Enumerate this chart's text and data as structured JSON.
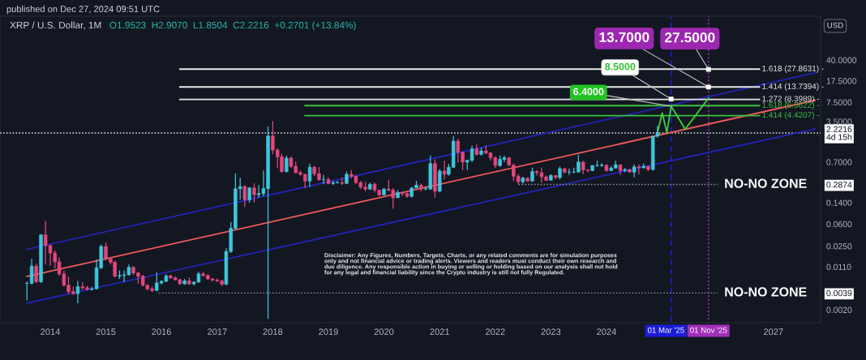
{
  "chart_data": {
    "type": "candlestick",
    "title": "XRP / U.S. Dollar, 1M",
    "subtitle": "O1.9523  H2.9070  L1.8504  C2.2216  +0.2701 (+13.84%)",
    "ylabel": "USD",
    "log": true,
    "x": [
      "2013-08",
      "2013-09",
      "2013-10",
      "2013-11",
      "2013-12",
      "2014-01",
      "2014-02",
      "2014-03",
      "2014-04",
      "2014-05",
      "2014-06",
      "2014-07",
      "2014-08",
      "2014-09",
      "2014-10",
      "2014-11",
      "2014-12",
      "2015-01",
      "2015-02",
      "2015-03",
      "2015-04",
      "2015-05",
      "2015-06",
      "2015-07",
      "2015-08",
      "2015-09",
      "2015-10",
      "2015-11",
      "2015-12",
      "2016-01",
      "2016-02",
      "2016-03",
      "2016-04",
      "2016-05",
      "2016-06",
      "2016-07",
      "2016-08",
      "2016-09",
      "2016-10",
      "2016-11",
      "2016-12",
      "2017-01",
      "2017-02",
      "2017-03",
      "2017-04",
      "2017-05",
      "2017-06",
      "2017-07",
      "2017-08",
      "2017-09",
      "2017-10",
      "2017-11",
      "2017-12",
      "2018-01",
      "2018-02",
      "2018-03",
      "2018-04",
      "2018-05",
      "2018-06",
      "2018-07",
      "2018-08",
      "2018-09",
      "2018-10",
      "2018-11",
      "2018-12",
      "2019-01",
      "2019-02",
      "2019-03",
      "2019-04",
      "2019-05",
      "2019-06",
      "2019-07",
      "2019-08",
      "2019-09",
      "2019-10",
      "2019-11",
      "2019-12",
      "2020-01",
      "2020-02",
      "2020-03",
      "2020-04",
      "2020-05",
      "2020-06",
      "2020-07",
      "2020-08",
      "2020-09",
      "2020-10",
      "2020-11",
      "2020-12",
      "2021-01",
      "2021-02",
      "2021-03",
      "2021-04",
      "2021-05",
      "2021-06",
      "2021-07",
      "2021-08",
      "2021-09",
      "2021-10",
      "2021-11",
      "2021-12",
      "2022-01",
      "2022-02",
      "2022-03",
      "2022-04",
      "2022-05",
      "2022-06",
      "2022-07",
      "2022-08",
      "2022-09",
      "2022-10",
      "2022-11",
      "2022-12",
      "2023-01",
      "2023-02",
      "2023-03",
      "2023-04",
      "2023-05",
      "2023-06",
      "2023-07",
      "2023-08",
      "2023-09",
      "2023-10",
      "2023-11",
      "2023-12",
      "2024-01",
      "2024-02",
      "2024-03",
      "2024-04",
      "2024-05",
      "2024-06",
      "2024-07",
      "2024-08",
      "2024-09",
      "2024-10",
      "2024-11",
      "2024-12"
    ],
    "ohlc": [
      [
        0.0057,
        0.0062,
        0.0029,
        0.0057
      ],
      [
        0.0057,
        0.0151,
        0.0055,
        0.0113
      ],
      [
        0.0113,
        0.0125,
        0.0058,
        0.0061
      ],
      [
        0.0061,
        0.04,
        0.0058,
        0.039
      ],
      [
        0.039,
        0.068,
        0.012,
        0.0255
      ],
      [
        0.0255,
        0.027,
        0.0116,
        0.019
      ],
      [
        0.019,
        0.021,
        0.0103,
        0.0134
      ],
      [
        0.0134,
        0.016,
        0.0077,
        0.0083
      ],
      [
        0.0083,
        0.0095,
        0.005,
        0.0053
      ],
      [
        0.0053,
        0.0075,
        0.0037,
        0.0041
      ],
      [
        0.0041,
        0.005,
        0.0036,
        0.0038
      ],
      [
        0.0038,
        0.0063,
        0.0026,
        0.005
      ],
      [
        0.005,
        0.006,
        0.0044,
        0.0048
      ],
      [
        0.0048,
        0.0052,
        0.0043,
        0.0045
      ],
      [
        0.0045,
        0.005,
        0.0043,
        0.0046
      ],
      [
        0.0046,
        0.0147,
        0.0045,
        0.0106
      ],
      [
        0.0106,
        0.0267,
        0.01,
        0.0247
      ],
      [
        0.0247,
        0.0287,
        0.014,
        0.0151
      ],
      [
        0.0151,
        0.016,
        0.012,
        0.0132
      ],
      [
        0.0132,
        0.014,
        0.0072,
        0.0076
      ],
      [
        0.0076,
        0.0095,
        0.0068,
        0.0078
      ],
      [
        0.0078,
        0.0095,
        0.006,
        0.008
      ],
      [
        0.008,
        0.012,
        0.0078,
        0.0108
      ],
      [
        0.0108,
        0.0112,
        0.008,
        0.0086
      ],
      [
        0.0086,
        0.009,
        0.0056,
        0.0076
      ],
      [
        0.0076,
        0.008,
        0.005,
        0.0053
      ],
      [
        0.0053,
        0.0055,
        0.0043,
        0.0046
      ],
      [
        0.0046,
        0.005,
        0.004,
        0.0043
      ],
      [
        0.0043,
        0.0088,
        0.0042,
        0.0058
      ],
      [
        0.0058,
        0.0065,
        0.0055,
        0.0062
      ],
      [
        0.0062,
        0.0082,
        0.006,
        0.0077
      ],
      [
        0.0077,
        0.008,
        0.0068,
        0.0071
      ],
      [
        0.0071,
        0.0075,
        0.0064,
        0.0066
      ],
      [
        0.0066,
        0.0068,
        0.0054,
        0.0056
      ],
      [
        0.0056,
        0.0068,
        0.0054,
        0.0063
      ],
      [
        0.0063,
        0.0072,
        0.0054,
        0.0056
      ],
      [
        0.0056,
        0.0062,
        0.0053,
        0.006
      ],
      [
        0.006,
        0.009,
        0.0059,
        0.0083
      ],
      [
        0.0083,
        0.009,
        0.0074,
        0.0078
      ],
      [
        0.0078,
        0.0082,
        0.0066,
        0.0068
      ],
      [
        0.0068,
        0.007,
        0.0062,
        0.0065
      ],
      [
        0.0065,
        0.007,
        0.006,
        0.0063
      ],
      [
        0.0063,
        0.0066,
        0.0052,
        0.0055
      ],
      [
        0.0055,
        0.023,
        0.0053,
        0.0202
      ],
      [
        0.0202,
        0.065,
        0.019,
        0.0507
      ],
      [
        0.0507,
        0.45,
        0.048,
        0.243
      ],
      [
        0.243,
        0.376,
        0.157,
        0.265
      ],
      [
        0.265,
        0.28,
        0.118,
        0.157
      ],
      [
        0.157,
        0.26,
        0.14,
        0.251
      ],
      [
        0.251,
        0.3,
        0.14,
        0.192
      ],
      [
        0.192,
        0.28,
        0.17,
        0.2
      ],
      [
        0.2,
        0.5,
        0.18,
        0.245
      ],
      [
        0.245,
        2.86,
        0.0014,
        1.97
      ],
      [
        1.97,
        3.55,
        0.95,
        1.13
      ],
      [
        1.13,
        1.2,
        0.55,
        0.86
      ],
      [
        0.86,
        0.98,
        0.46,
        0.48
      ],
      [
        0.48,
        0.9,
        0.46,
        0.82
      ],
      [
        0.82,
        0.88,
        0.55,
        0.59
      ],
      [
        0.59,
        0.71,
        0.45,
        0.46
      ],
      [
        0.46,
        0.5,
        0.41,
        0.43
      ],
      [
        0.43,
        0.44,
        0.25,
        0.33
      ],
      [
        0.33,
        0.66,
        0.26,
        0.57
      ],
      [
        0.57,
        0.6,
        0.4,
        0.44
      ],
      [
        0.44,
        0.57,
        0.33,
        0.35
      ],
      [
        0.35,
        0.42,
        0.29,
        0.35
      ],
      [
        0.35,
        0.38,
        0.29,
        0.3
      ],
      [
        0.3,
        0.33,
        0.28,
        0.31
      ],
      [
        0.31,
        0.33,
        0.3,
        0.31
      ],
      [
        0.31,
        0.38,
        0.28,
        0.3
      ],
      [
        0.3,
        0.48,
        0.29,
        0.43
      ],
      [
        0.43,
        0.51,
        0.37,
        0.4
      ],
      [
        0.4,
        0.41,
        0.29,
        0.31
      ],
      [
        0.31,
        0.33,
        0.24,
        0.26
      ],
      [
        0.26,
        0.32,
        0.22,
        0.24
      ],
      [
        0.24,
        0.31,
        0.23,
        0.29
      ],
      [
        0.29,
        0.31,
        0.21,
        0.23
      ],
      [
        0.23,
        0.23,
        0.18,
        0.19
      ],
      [
        0.19,
        0.25,
        0.19,
        0.24
      ],
      [
        0.24,
        0.35,
        0.22,
        0.23
      ],
      [
        0.23,
        0.25,
        0.11,
        0.17
      ],
      [
        0.17,
        0.23,
        0.17,
        0.21
      ],
      [
        0.21,
        0.22,
        0.18,
        0.2
      ],
      [
        0.2,
        0.21,
        0.17,
        0.18
      ],
      [
        0.18,
        0.26,
        0.17,
        0.25
      ],
      [
        0.25,
        0.33,
        0.25,
        0.28
      ],
      [
        0.28,
        0.3,
        0.22,
        0.24
      ],
      [
        0.24,
        0.27,
        0.23,
        0.24
      ],
      [
        0.24,
        0.91,
        0.23,
        0.66
      ],
      [
        0.66,
        0.78,
        0.17,
        0.22
      ],
      [
        0.22,
        0.53,
        0.21,
        0.49
      ],
      [
        0.49,
        0.74,
        0.35,
        0.43
      ],
      [
        0.43,
        0.65,
        0.41,
        0.57
      ],
      [
        0.57,
        1.96,
        0.55,
        1.6
      ],
      [
        1.6,
        1.77,
        0.68,
        1.03
      ],
      [
        1.03,
        1.07,
        0.51,
        0.7
      ],
      [
        0.7,
        0.77,
        0.51,
        0.75
      ],
      [
        0.75,
        1.35,
        0.7,
        1.18
      ],
      [
        1.18,
        1.41,
        0.9,
        0.95
      ],
      [
        0.95,
        1.24,
        0.91,
        1.09
      ],
      [
        1.09,
        1.35,
        0.96,
        1.0
      ],
      [
        1.0,
        1.04,
        0.74,
        0.83
      ],
      [
        0.83,
        0.88,
        0.55,
        0.61
      ],
      [
        0.61,
        0.91,
        0.58,
        0.78
      ],
      [
        0.78,
        0.91,
        0.69,
        0.83
      ],
      [
        0.83,
        0.85,
        0.6,
        0.62
      ],
      [
        0.62,
        0.66,
        0.33,
        0.4
      ],
      [
        0.4,
        0.43,
        0.29,
        0.32
      ],
      [
        0.32,
        0.39,
        0.3,
        0.37
      ],
      [
        0.37,
        0.38,
        0.32,
        0.33
      ],
      [
        0.33,
        0.56,
        0.32,
        0.48
      ],
      [
        0.48,
        0.51,
        0.41,
        0.46
      ],
      [
        0.46,
        0.56,
        0.31,
        0.39
      ],
      [
        0.39,
        0.41,
        0.33,
        0.34
      ],
      [
        0.34,
        0.43,
        0.34,
        0.41
      ],
      [
        0.41,
        0.42,
        0.36,
        0.38
      ],
      [
        0.38,
        0.59,
        0.35,
        0.54
      ],
      [
        0.54,
        0.55,
        0.44,
        0.47
      ],
      [
        0.47,
        0.54,
        0.42,
        0.47
      ],
      [
        0.47,
        0.56,
        0.45,
        0.47
      ],
      [
        0.47,
        0.94,
        0.47,
        0.7
      ],
      [
        0.7,
        0.73,
        0.43,
        0.51
      ],
      [
        0.51,
        0.53,
        0.47,
        0.5
      ],
      [
        0.5,
        0.62,
        0.49,
        0.61
      ],
      [
        0.61,
        0.74,
        0.58,
        0.61
      ],
      [
        0.61,
        0.67,
        0.58,
        0.62
      ],
      [
        0.62,
        0.64,
        0.48,
        0.5
      ],
      [
        0.5,
        0.6,
        0.49,
        0.55
      ],
      [
        0.55,
        0.74,
        0.55,
        0.63
      ],
      [
        0.63,
        0.63,
        0.42,
        0.5
      ],
      [
        0.5,
        0.55,
        0.47,
        0.52
      ],
      [
        0.52,
        0.54,
        0.46,
        0.47
      ],
      [
        0.47,
        0.64,
        0.38,
        0.58
      ],
      [
        0.58,
        0.64,
        0.43,
        0.56
      ],
      [
        0.56,
        0.66,
        0.54,
        0.59
      ],
      [
        0.59,
        0.59,
        0.49,
        0.52
      ],
      [
        0.52,
        1.97,
        0.5,
        1.9523
      ],
      [
        1.9523,
        2.907,
        1.8504,
        2.2216
      ]
    ],
    "series": [
      {
        "type": "line",
        "color": "#f05a5a",
        "x": [
          "2013-08",
          "2027-10"
        ],
        "values": [
          0.0075,
          8.1
        ]
      },
      {
        "type": "line",
        "color": "#2424b8",
        "x": [
          "2013-08",
          "2027-10"
        ],
        "values": [
          0.022,
          24
        ]
      },
      {
        "type": "line",
        "color": "#2424b8",
        "x": [
          "2013-08",
          "2027-10"
        ],
        "values": [
          0.0026,
          2.6
        ]
      },
      {
        "type": "line",
        "name": "1.618 (27.8631) -",
        "color": "#e8e8e8",
        "x": [
          "2016-05",
          "2026-10"
        ],
        "values": [
          27.8631,
          27.8631
        ]
      },
      {
        "type": "line",
        "name": "1.414 (13.7394) -",
        "color": "#e8e8e8",
        "x": [
          "2016-05",
          "2026-10"
        ],
        "values": [
          13.7394,
          13.7394
        ]
      },
      {
        "type": "line",
        "name": "1.272 (8.3989) -",
        "color": "#e8e8e8",
        "x": [
          "2016-05",
          "2026-10"
        ],
        "values": [
          8.3989,
          8.3989
        ]
      },
      {
        "type": "line",
        "name": "1.618 (6.5622) -",
        "color": "#3fbf3f",
        "x": [
          "2018-08",
          "2026-10"
        ],
        "values": [
          6.5622,
          6.5622
        ]
      },
      {
        "type": "line",
        "name": "1.414 (4.4207) -",
        "color": "#3fbf3f",
        "x": [
          "2018-08",
          "2026-10"
        ],
        "values": [
          4.4207,
          4.4207
        ]
      },
      {
        "type": "line",
        "name": "NO-NO ZONE",
        "color": "#8c9099",
        "line_style": "dotted",
        "x": [
          "2022-06",
          "2026-01"
        ],
        "values": [
          0.2874,
          0.2874
        ]
      },
      {
        "type": "line",
        "name": "NO-NO ZONE",
        "color": "#8c9099",
        "line_style": "dotted",
        "x": [
          "2015-12",
          "2026-01"
        ],
        "values": [
          0.0039,
          0.0039
        ]
      },
      {
        "type": "line",
        "color": "#3cd23c",
        "x": [
          "2024-12",
          "2025-01",
          "2025-02",
          "2025-03",
          "2025-06",
          "2025-11"
        ],
        "values": [
          2.22,
          4.9,
          2.26,
          6.4,
          2.58,
          8.8
        ]
      }
    ],
    "xlim": [
      "2013-02-05",
      "2027-11-07"
    ],
    "xticks": [
      "2014",
      "2015",
      "2016",
      "2017",
      "2018",
      "2019",
      "2020",
      "2021",
      "2022",
      "2023",
      "2024",
      "2027"
    ],
    "ylim": [
      0.0012,
      227
    ],
    "yticks": [
      {
        "value": 40,
        "label": "40.0000"
      },
      {
        "value": 17.5,
        "label": "17.5000"
      },
      {
        "value": 7.5,
        "label": "7.5000"
      },
      {
        "value": 3.5,
        "label": "3.5000"
      },
      {
        "value": 2.2216,
        "label": "2.2216\n4d 15h"
      },
      {
        "value": 0.7,
        "label": "0.7000"
      },
      {
        "value": 0.2874,
        "label": "0.2874"
      },
      {
        "value": 0.14,
        "label": "0.1400"
      },
      {
        "value": 0.06,
        "label": "0.0600"
      },
      {
        "value": 0.025,
        "label": "0.0250"
      },
      {
        "value": 0.011,
        "label": "0.0110"
      },
      {
        "value": 0.0039,
        "label": "0.0039"
      },
      {
        "value": 0.002,
        "label": "0.0020"
      }
    ],
    "ref_lines": [
      {
        "axis": "y",
        "value": 2.2216,
        "color": "#e0e3eb",
        "line_style": "dotted"
      },
      {
        "axis": "x",
        "value": "2025-03-01",
        "label": "01 Mar '25",
        "color": "#1c1cd6",
        "line_style": "dashed"
      },
      {
        "axis": "x",
        "value": "2025-11-01",
        "label": "01 Nov '25",
        "color": "#a12fb8",
        "line_style": "dotted"
      }
    ],
    "annotations": [
      "published on Dec 27, 2024 09:51 UTC",
      {
        "text": "13.7000",
        "x": "2025-11-01",
        "y": 13.7
      },
      {
        "text": "27.5000",
        "x": "2025-11-01",
        "y": 27.5
      },
      {
        "text": "8.5000",
        "x": "2025-03-01",
        "y": 8.5
      },
      {
        "text": "6.4000",
        "x": "2025-03-01",
        "y": 6.4
      },
      "Disclaimer: Any Figures, Numbers, Targets, Charts, or any related comments are for simulation purposes\nonly and not financial advice or trading alerts. Viewers and readers must conduct their own research and\ndue diligence. Any responsible action in buying or selling or holding based on our analysis shall not hold\nfor any legal and financial liability since the Crypto industry is still not fully Regulated."
    ]
  }
}
